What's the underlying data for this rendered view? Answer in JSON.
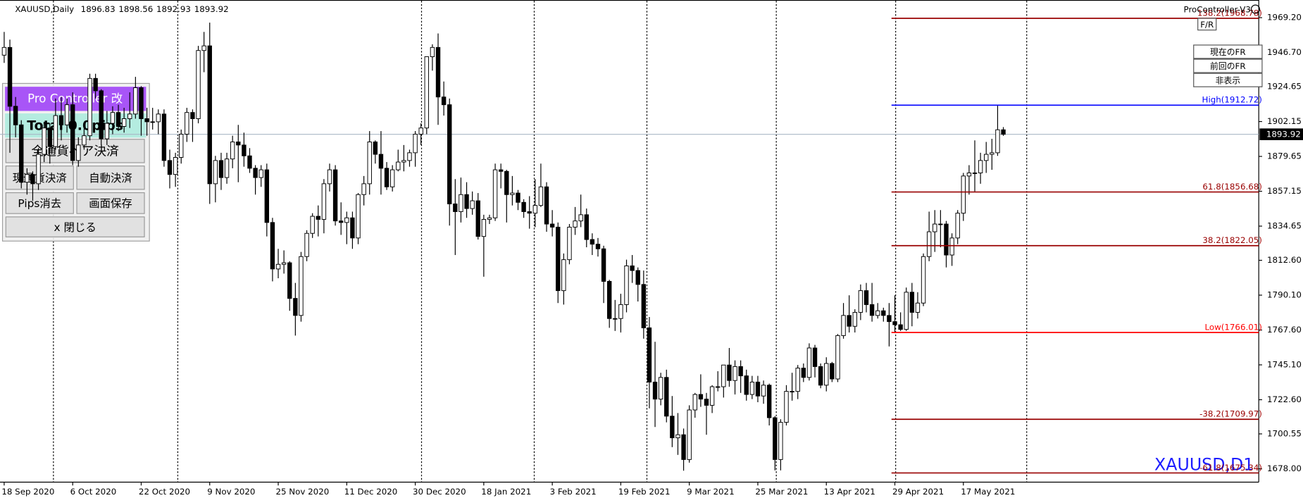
{
  "symbol": "XAUUSD,Daily",
  "expert": "ProController-V3",
  "watermark": "XAUUSD,D1",
  "chart_data": {
    "type": "candlestick",
    "categories": [
      "18 Sep 2020",
      null,
      null,
      null,
      null,
      null,
      null,
      null,
      null,
      null,
      null,
      null,
      "6 Oct 2020",
      null,
      null,
      null,
      null,
      null,
      null,
      null,
      null,
      null,
      null,
      null,
      "22 Oct 2020",
      null,
      null,
      null,
      null,
      null,
      null,
      null,
      null,
      null,
      null,
      null,
      "9 Nov 2020",
      null,
      null,
      null,
      null,
      null,
      null,
      null,
      null,
      null,
      null,
      null,
      "25 Nov 2020",
      null,
      null,
      null,
      null,
      null,
      null,
      null,
      null,
      null,
      null,
      null,
      "11 Dec 2020",
      null,
      null,
      null,
      null,
      null,
      null,
      null,
      null,
      null,
      null,
      null,
      "30 Dec 2020",
      null,
      null,
      null,
      null,
      null,
      null,
      null,
      null,
      null,
      null,
      null,
      "18 Jan 2021",
      null,
      null,
      null,
      null,
      null,
      null,
      null,
      null,
      null,
      null,
      null,
      "3 Feb 2021",
      null,
      null,
      null,
      null,
      null,
      null,
      null,
      null,
      null,
      null,
      null,
      "19 Feb 2021",
      null,
      null,
      null,
      null,
      null,
      null,
      null,
      null,
      null,
      null,
      null,
      "9 Mar 2021",
      null,
      null,
      null,
      null,
      null,
      null,
      null,
      null,
      null,
      null,
      null,
      "25 Mar 2021",
      null,
      null,
      null,
      null,
      null,
      null,
      null,
      null,
      null,
      null,
      null,
      "13 Apr 2021",
      null,
      null,
      null,
      null,
      null,
      null,
      null,
      null,
      null,
      null,
      null,
      "29 Apr 2021",
      null,
      null,
      null,
      null,
      null,
      null,
      null,
      null,
      null,
      null,
      null,
      "17 May 2021",
      null,
      null,
      null,
      null,
      null,
      null,
      null
    ],
    "open": [
      1945,
      1950,
      1912,
      1900,
      1863,
      1868,
      1862,
      1881,
      1898,
      1886,
      1906,
      1900,
      1913,
      1877,
      1887,
      1893,
      1930,
      1922,
      1891,
      1901,
      1908,
      1899,
      1904,
      1907,
      1924,
      1904,
      1902,
      1902,
      1907,
      1877,
      1868,
      1879,
      1894,
      1908,
      1904,
      1948,
      1951,
      1862,
      1877,
      1866,
      1878,
      1889,
      1887,
      1880,
      1872,
      1866,
      1871,
      1837,
      1807,
      1810,
      1811,
      1788,
      1777,
      1815,
      1830,
      1841,
      1839,
      1862,
      1871,
      1838,
      1837,
      1840,
      1827,
      1855,
      1862,
      1889,
      1881,
      1872,
      1860,
      1871,
      1876,
      1877,
      1882,
      1894,
      1898,
      1944,
      1950,
      1918,
      1913,
      1849,
      1844,
      1855,
      1846,
      1851,
      1828,
      1839,
      1840,
      1871,
      1870,
      1855,
      1856,
      1850,
      1844,
      1843,
      1848,
      1860,
      1836,
      1834,
      1793,
      1813,
      1834,
      1838,
      1842,
      1826,
      1823,
      1820,
      1799,
      1775,
      1775,
      1784,
      1809,
      1806,
      1797,
      1769,
      1734,
      1723,
      1737,
      1712,
      1698,
      1700,
      1684,
      1716,
      1726,
      1723,
      1719,
      1731,
      1731,
      1745,
      1735,
      1744,
      1738,
      1726,
      1734,
      1725,
      1732,
      1711,
      1684,
      1708,
      1728,
      1728,
      1743,
      1737,
      1756,
      1744,
      1732,
      1746,
      1736,
      1764,
      1777,
      1770,
      1779,
      1793,
      1784,
      1777,
      1780,
      1777,
      1773,
      1771,
      1768,
      1792,
      1779,
      1785,
      1815,
      1831,
      1836,
      1836,
      1816,
      1827,
      1843,
      1867,
      1869,
      1869,
      1877,
      1881,
      1882,
      1896.83
    ],
    "high": [
      1960,
      1955,
      1918,
      1903,
      1872,
      1870,
      1885,
      1902,
      1901,
      1917,
      1918,
      1917,
      1921,
      1892,
      1898,
      1933,
      1933,
      1923,
      1909,
      1912,
      1913,
      1911,
      1921,
      1931,
      1925,
      1911,
      1911,
      1910,
      1910,
      1884,
      1882,
      1897,
      1911,
      1910,
      1951,
      1960,
      1966,
      1880,
      1882,
      1882,
      1893,
      1900,
      1895,
      1885,
      1874,
      1874,
      1875,
      1840,
      1820,
      1819,
      1812,
      1798,
      1818,
      1832,
      1843,
      1848,
      1865,
      1875,
      1874,
      1850,
      1844,
      1844,
      1856,
      1867,
      1896,
      1890,
      1896,
      1876,
      1874,
      1884,
      1887,
      1884,
      1896,
      1901,
      1944,
      1952,
      1959,
      1928,
      1917,
      1865,
      1866,
      1863,
      1857,
      1856,
      1842,
      1842,
      1875,
      1875,
      1871,
      1867,
      1858,
      1852,
      1854,
      1865,
      1875,
      1863,
      1845,
      1837,
      1817,
      1836,
      1847,
      1855,
      1846,
      1830,
      1827,
      1822,
      1800,
      1787,
      1791,
      1813,
      1816,
      1808,
      1806,
      1776,
      1760,
      1740,
      1742,
      1725,
      1714,
      1704,
      1719,
      1727,
      1739,
      1727,
      1732,
      1741,
      1745,
      1756,
      1748,
      1748,
      1742,
      1738,
      1738,
      1735,
      1733,
      1712,
      1710,
      1732,
      1740,
      1745,
      1746,
      1759,
      1758,
      1746,
      1750,
      1747,
      1765,
      1785,
      1790,
      1781,
      1797,
      1798,
      1798,
      1785,
      1782,
      1785,
      1790,
      1779,
      1795,
      1798,
      1792,
      1817,
      1844,
      1845,
      1845,
      1838,
      1830,
      1845,
      1869,
      1874,
      1890,
      1882,
      1889,
      1891,
      1912.72,
      1898.56
    ],
    "low": [
      1940,
      1882,
      1892,
      1859,
      1855,
      1851,
      1858,
      1876,
      1875,
      1884,
      1890,
      1895,
      1874,
      1873,
      1884,
      1890,
      1917,
      1887,
      1887,
      1894,
      1896,
      1895,
      1898,
      1904,
      1893,
      1893,
      1897,
      1894,
      1873,
      1859,
      1860,
      1875,
      1889,
      1889,
      1901,
      1934,
      1849,
      1850,
      1858,
      1862,
      1872,
      1863,
      1873,
      1869,
      1855,
      1860,
      1828,
      1799,
      1801,
      1804,
      1780,
      1764,
      1773,
      1812,
      1827,
      1828,
      1830,
      1857,
      1835,
      1829,
      1823,
      1820,
      1823,
      1848,
      1855,
      1875,
      1855,
      1858,
      1857,
      1870,
      1870,
      1873,
      1873,
      1887,
      1894,
      1935,
      1900,
      1906,
      1835,
      1816,
      1837,
      1840,
      1842,
      1826,
      1802,
      1836,
      1838,
      1859,
      1837,
      1848,
      1845,
      1840,
      1833,
      1834,
      1847,
      1831,
      1828,
      1785,
      1784,
      1810,
      1829,
      1834,
      1821,
      1816,
      1815,
      1785,
      1769,
      1767,
      1766,
      1779,
      1798,
      1786,
      1762,
      1717,
      1705,
      1719,
      1708,
      1692,
      1687,
      1676.8,
      1682,
      1711,
      1718,
      1700,
      1714,
      1728,
      1724,
      1731,
      1726,
      1727,
      1722,
      1723,
      1721,
      1720,
      1706,
      1677,
      1677,
      1706,
      1722,
      1723,
      1734,
      1735,
      1737,
      1730,
      1728,
      1734,
      1734,
      1762,
      1766,
      1766,
      1774,
      1779,
      1773,
      1775,
      1773,
      1757,
      1766.01,
      1767,
      1767,
      1770,
      1775,
      1783,
      1812,
      1818,
      1821,
      1808,
      1809,
      1823,
      1838,
      1855,
      1857,
      1862,
      1869,
      1871,
      1880,
      1892.93
    ],
    "close": [
      1950,
      1912,
      1900,
      1863,
      1868,
      1862,
      1881,
      1898,
      1886,
      1906,
      1900,
      1913,
      1877,
      1887,
      1893,
      1930,
      1922,
      1891,
      1901,
      1908,
      1899,
      1904,
      1907,
      1924,
      1904,
      1902,
      1902,
      1907,
      1877,
      1868,
      1879,
      1894,
      1908,
      1904,
      1948,
      1951,
      1862,
      1877,
      1866,
      1878,
      1889,
      1887,
      1880,
      1872,
      1866,
      1871,
      1837,
      1807,
      1810,
      1811,
      1788,
      1777,
      1815,
      1830,
      1841,
      1839,
      1862,
      1871,
      1838,
      1837,
      1840,
      1827,
      1855,
      1862,
      1889,
      1881,
      1872,
      1860,
      1871,
      1876,
      1877,
      1882,
      1894,
      1898,
      1944,
      1950,
      1918,
      1913,
      1849,
      1844,
      1855,
      1846,
      1851,
      1828,
      1839,
      1840,
      1871,
      1870,
      1855,
      1856,
      1850,
      1844,
      1843,
      1848,
      1860,
      1836,
      1834,
      1793,
      1813,
      1834,
      1838,
      1842,
      1826,
      1823,
      1820,
      1799,
      1775,
      1775,
      1784,
      1809,
      1806,
      1797,
      1769,
      1734,
      1723,
      1737,
      1712,
      1698,
      1700,
      1684,
      1716,
      1726,
      1723,
      1719,
      1731,
      1731,
      1745,
      1735,
      1744,
      1738,
      1726,
      1734,
      1725,
      1732,
      1711,
      1684,
      1708,
      1728,
      1728,
      1743,
      1737,
      1756,
      1744,
      1732,
      1746,
      1736,
      1764,
      1777,
      1770,
      1779,
      1793,
      1784,
      1777,
      1780,
      1777,
      1773,
      1771,
      1768,
      1792,
      1779,
      1785,
      1815,
      1831,
      1836,
      1836,
      1816,
      1827,
      1843,
      1867,
      1869,
      1869,
      1877,
      1881,
      1882,
      1896.83,
      1893.92
    ],
    "up_color": "#ffffff",
    "down_color": "#000000",
    "outline_color": "#000000",
    "bid_line_color": "#a9b7c6",
    "ylim": [
      1669.4,
      1980.6
    ],
    "yticks": [
      {
        "value": 1969.2,
        "label": "1969.20"
      },
      {
        "value": 1946.7,
        "label": "1946.70"
      },
      1924.65,
      1902.15,
      1879.65,
      1857.15,
      1834.65,
      {
        "value": 1812.6,
        "label": "1812.60"
      },
      {
        "value": 1790.1,
        "label": "1790.10"
      },
      {
        "value": 1767.6,
        "label": "1767.60"
      },
      {
        "value": 1745.1,
        "label": "1745.10"
      },
      {
        "value": 1722.6,
        "label": "1722.60"
      },
      1700.55,
      {
        "value": 1678,
        "label": "1678.00"
      }
    ],
    "fib_levels": [
      {
        "label": "138.2(1968.78)",
        "value": 1968.78,
        "color": "#990000"
      },
      {
        "label": "High(1912.72)",
        "value": 1912.72,
        "color": "#0000ff"
      },
      {
        "label": "61.8(1856.68)",
        "value": 1856.68,
        "color": "#990000"
      },
      {
        "label": "38.2(1822.05)",
        "value": 1822.05,
        "color": "#990000"
      },
      {
        "label": "Low(1766.01)",
        "value": 1766.01,
        "color": "#ff0000"
      },
      {
        "label": "-38.2(1709.97)",
        "value": 1709.97,
        "color": "#990000"
      },
      {
        "label": "-61.8(1675.34)",
        "value": 1675.34,
        "color": "#990000"
      }
    ]
  },
  "panel": {
    "title": "Pro Controller 改",
    "total": "Total  0.0pips",
    "buttons": [
      "全通貨ペア決済",
      "現通貨決済",
      "自動決済",
      "Pips消去",
      "画面保存",
      "x 閉じる"
    ]
  },
  "fr_buttons": [
    "F/R",
    "現在のFR",
    "前回のFR",
    "非表示"
  ]
}
